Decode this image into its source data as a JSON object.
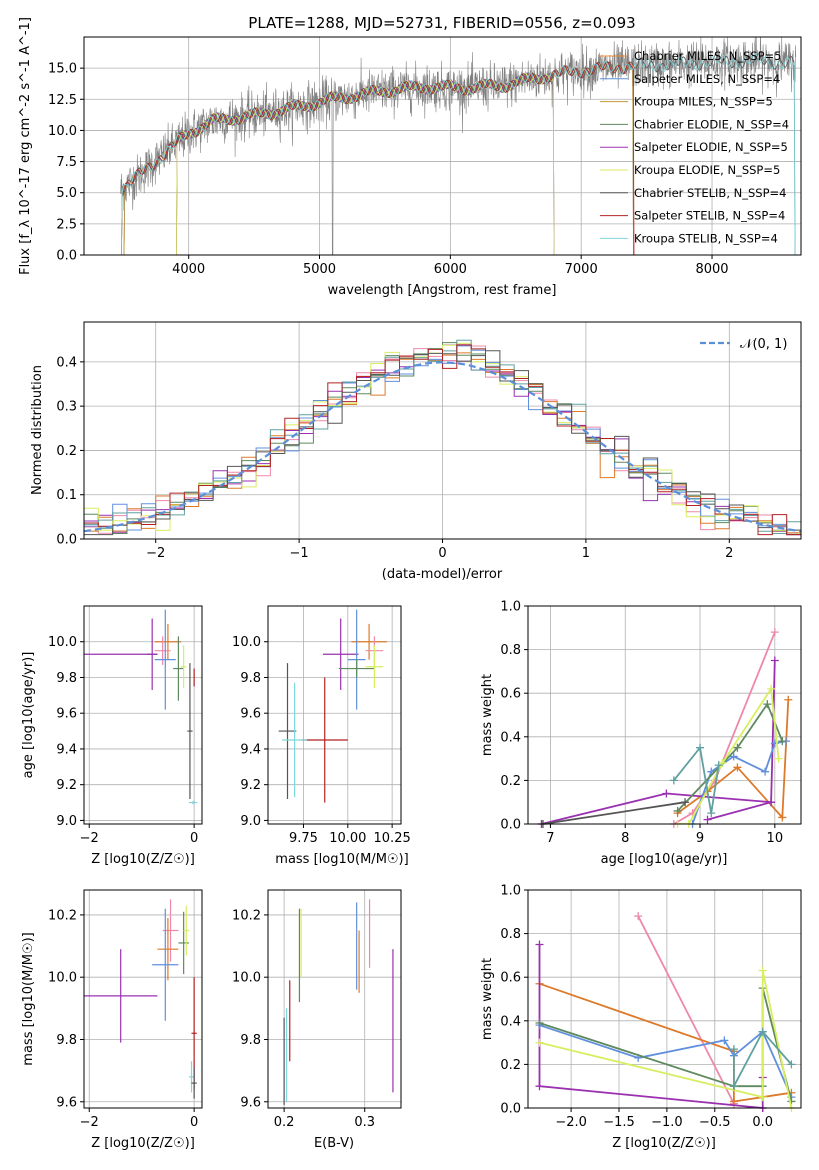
{
  "colors": {
    "Chabrier MILES": "#e8883a",
    "Salpeter MILES": "#5b8fd9",
    "Kroupa MILES": "#c49a3a",
    "Chabrier ELODIE": "#5e8a5e",
    "Salpeter ELODIE": "#a034b4",
    "Kroupa ELODIE": "#d8e860",
    "Chabrier STELIB": "#555555",
    "Salpeter STELIB": "#b22222",
    "Kroupa STELIB": "#7fd6dd",
    "data": "#808080",
    "gauss": "#5b8fd9",
    "pink": "#ee88aa",
    "orange": "#dd7a2a",
    "green": "#5e8a5e",
    "purple": "#9a30b0",
    "yellow": "#d8ee60",
    "blue": "#6090dd",
    "teal": "#60a0a0"
  },
  "chart_data": [
    {
      "type": "line",
      "title": "PLATE=1288, MJD=52731, FIBERID=0556, z=0.093",
      "xlabel": "wavelength [Angstrom, rest frame]",
      "ylabel": "Flux [f_λ 10^-17 erg cm^-2 s^-1 A^-1]",
      "xlim": [
        3200,
        8680
      ],
      "ylim": [
        0,
        17.5
      ],
      "xticks": [
        "4000",
        "5000",
        "6000",
        "7000",
        "8000"
      ],
      "xtick_values": [
        4000,
        5000,
        6000,
        7000,
        8000
      ],
      "yticks": [
        "0.0",
        "2.5",
        "5.0",
        "7.5",
        "10.0",
        "12.5",
        "15.0"
      ],
      "ytick_values": [
        0,
        2.5,
        5,
        7.5,
        10,
        12.5,
        15
      ],
      "legend": "upper right",
      "series": [
        {
          "name": "Chabrier MILES, N_SSP=5"
        },
        {
          "name": "Salpeter MILES, N_SSP=4"
        },
        {
          "name": "Kroupa MILES, N_SSP=5"
        },
        {
          "name": "Chabrier ELODIE, N_SSP=4"
        },
        {
          "name": "Salpeter ELODIE, N_SSP=5"
        },
        {
          "name": "Kroupa ELODIE, N_SSP=5"
        },
        {
          "name": "Chabrier STELIB, N_SSP=4"
        },
        {
          "name": "Salpeter STELIB, N_SSP=4"
        },
        {
          "name": "Kroupa STELIB, N_SSP=4"
        }
      ],
      "continuum": [
        [
          3480,
          5.2
        ],
        [
          3600,
          6.2
        ],
        [
          3800,
          8.0
        ],
        [
          4000,
          9.8
        ],
        [
          4200,
          10.8
        ],
        [
          4500,
          11.2
        ],
        [
          4800,
          11.8
        ],
        [
          5100,
          12.5
        ],
        [
          5500,
          13.2
        ],
        [
          5800,
          13.5
        ],
        [
          6100,
          13.4
        ],
        [
          6400,
          13.6
        ],
        [
          6700,
          14.3
        ],
        [
          7000,
          14.8
        ],
        [
          7400,
          15.2
        ],
        [
          7700,
          15.3
        ],
        [
          8000,
          15.5
        ],
        [
          8300,
          15.6
        ],
        [
          8640,
          15.4
        ]
      ]
    },
    {
      "type": "bar",
      "xlabel": "(data-model)/error",
      "ylabel": "Normed distribution",
      "xlim": [
        -2.5,
        2.5
      ],
      "ylim": [
        0,
        0.49
      ],
      "xticks": [
        "−2",
        "−1",
        "0",
        "1",
        "2"
      ],
      "xtick_values": [
        -2,
        -1,
        0,
        1,
        2
      ],
      "yticks": [
        "0.0",
        "0.1",
        "0.2",
        "0.3",
        "0.4"
      ],
      "ytick_values": [
        0,
        0.1,
        0.2,
        0.3,
        0.4
      ],
      "legend": "upper right",
      "gauss_label": "𝒩(0, 1)",
      "bin_width": 0.1
    },
    {
      "type": "scatter",
      "xlabel": "Z [log10(Z/Z☉)]",
      "ylabel": "age  [log10(age/yr)]",
      "xlim": [
        -2.1,
        0.15
      ],
      "ylim": [
        8.98,
        10.2
      ],
      "xticks": [
        "−2",
        "0"
      ],
      "xtick_values": [
        -2,
        0
      ],
      "yticks": [
        "9.0",
        "9.2",
        "9.4",
        "9.6",
        "9.8",
        "10.0"
      ],
      "ytick_values": [
        9.0,
        9.2,
        9.4,
        9.6,
        9.8,
        10.0
      ],
      "points": [
        {
          "c": "orange",
          "x": -0.5,
          "xe": 0.25,
          "y": 10.0,
          "ye": 0.1
        },
        {
          "c": "pink",
          "x": -0.6,
          "xe": 0.15,
          "y": 9.95,
          "ye": 0.08
        },
        {
          "c": "purple",
          "x": -0.8,
          "xe": 0.1,
          "y": 9.93,
          "ye": 0.2
        },
        {
          "c": "purple",
          "x": -1.4,
          "xe": 0.7,
          "y": 9.93,
          "ye": 0.0
        },
        {
          "c": "blue",
          "x": -0.55,
          "xe": 0.2,
          "y": 9.9,
          "ye": 0.28
        },
        {
          "c": "green",
          "x": -0.3,
          "xe": 0.1,
          "y": 9.85,
          "ye": 0.18
        },
        {
          "c": "yellow",
          "x": -0.2,
          "xe": 0.05,
          "y": 9.86,
          "ye": 0.12
        },
        {
          "c": "Chabrier STELIB",
          "x": -0.08,
          "xe": 0.05,
          "y": 9.5,
          "ye": 0.38
        },
        {
          "c": "Salpeter STELIB",
          "x": 0.0,
          "xe": 0.01,
          "y": 9.8,
          "ye": 0.05
        },
        {
          "c": "Kroupa STELIB",
          "x": -0.02,
          "xe": 0.08,
          "y": 9.1,
          "ye": 0.01
        }
      ]
    },
    {
      "type": "scatter",
      "xlabel": "mass [log10(M/M☉)]",
      "ylabel": "",
      "xlim": [
        9.55,
        10.3
      ],
      "ylim": [
        8.98,
        10.2
      ],
      "xticks": [
        "9.75",
        "10.00",
        "10.25"
      ],
      "xtick_values": [
        9.75,
        10.0,
        10.25
      ],
      "yticks": [
        "9.0",
        "9.2",
        "9.4",
        "9.6",
        "9.8",
        "10.0"
      ],
      "ytick_values": [
        9.0,
        9.2,
        9.4,
        9.6,
        9.8,
        10.0
      ],
      "points": [
        {
          "c": "orange",
          "x": 10.12,
          "xe": 0.1,
          "y": 10.0,
          "ye": 0.1
        },
        {
          "c": "pink",
          "x": 10.15,
          "xe": 0.05,
          "y": 9.95,
          "ye": 0.08
        },
        {
          "c": "purple",
          "x": 9.96,
          "xe": 0.1,
          "y": 9.93,
          "ye": 0.2
        },
        {
          "c": "blue",
          "x": 10.05,
          "xe": 0.05,
          "y": 9.9,
          "ye": 0.28
        },
        {
          "c": "green",
          "x": 10.05,
          "xe": 0.1,
          "y": 9.85,
          "ye": 0.05
        },
        {
          "c": "yellow",
          "x": 10.15,
          "xe": 0.05,
          "y": 9.86,
          "ye": 0.12
        },
        {
          "c": "Chabrier STELIB",
          "x": 9.66,
          "xe": 0.05,
          "y": 9.5,
          "ye": 0.38
        },
        {
          "c": "Salpeter STELIB",
          "x": 9.87,
          "xe": 0.13,
          "y": 9.45,
          "ye": 0.35
        },
        {
          "c": "Kroupa STELIB",
          "x": 9.7,
          "xe": 0.07,
          "y": 9.45,
          "ye": 0.32
        }
      ]
    },
    {
      "type": "line",
      "xlabel": "age  [log10(age/yr)]",
      "ylabel": "mass weight",
      "xlim": [
        6.7,
        10.35
      ],
      "ylim": [
        0,
        1.0
      ],
      "xticks": [
        "7",
        "8",
        "9",
        "10"
      ],
      "xtick_values": [
        7,
        8,
        9,
        10
      ],
      "yticks": [
        "0.0",
        "0.2",
        "0.4",
        "0.6",
        "0.8",
        "1.0"
      ],
      "ytick_values": [
        0,
        0.2,
        0.4,
        0.6,
        0.8,
        1.0
      ],
      "series": [
        {
          "c": "pink",
          "pts": [
            [
              8.65,
              0.0
            ],
            [
              8.9,
              0.05
            ],
            [
              9.2,
              0.2
            ],
            [
              10.0,
              0.88
            ]
          ]
        },
        {
          "c": "orange",
          "pts": [
            [
              8.7,
              0.05
            ],
            [
              9.1,
              0.15
            ],
            [
              9.5,
              0.26
            ],
            [
              10.1,
              0.03
            ],
            [
              10.18,
              0.57
            ]
          ]
        },
        {
          "c": "purple",
          "pts": [
            [
              6.88,
              0.0
            ],
            [
              8.55,
              0.14
            ],
            [
              9.95,
              0.1
            ],
            [
              10.0,
              0.75
            ],
            [
              9.95,
              0.1
            ],
            [
              9.1,
              0.02
            ]
          ]
        },
        {
          "c": "blue",
          "pts": [
            [
              8.9,
              0.0
            ],
            [
              9.15,
              0.24
            ],
            [
              9.45,
              0.31
            ],
            [
              9.87,
              0.24
            ],
            [
              10.0,
              0.37
            ],
            [
              10.15,
              0.38
            ]
          ]
        },
        {
          "c": "green",
          "pts": [
            [
              8.7,
              0.06
            ],
            [
              9.5,
              0.35
            ],
            [
              9.9,
              0.55
            ],
            [
              10.1,
              0.38
            ]
          ]
        },
        {
          "c": "yellow",
          "pts": [
            [
              8.7,
              0.0
            ],
            [
              8.85,
              0.0
            ],
            [
              9.3,
              0.28
            ],
            [
              9.95,
              0.62
            ],
            [
              10.05,
              0.3
            ]
          ]
        },
        {
          "c": "teal",
          "pts": [
            [
              8.65,
              0.2
            ],
            [
              9.0,
              0.35
            ],
            [
              9.15,
              0.05
            ],
            [
              9.25,
              0.27
            ]
          ]
        },
        {
          "c": "Chabrier STELIB",
          "pts": [
            [
              6.9,
              0.0
            ],
            [
              8.8,
              0.1
            ]
          ]
        }
      ]
    },
    {
      "type": "scatter",
      "xlabel": "Z [log10(Z/Z☉)]",
      "ylabel": "mass [log10(M/M☉)]",
      "xlim": [
        -2.1,
        0.15
      ],
      "ylim": [
        9.58,
        10.28
      ],
      "xticks": [
        "−2",
        "0"
      ],
      "xtick_values": [
        -2,
        0
      ],
      "yticks": [
        "9.6",
        "9.8",
        "10.0",
        "10.2"
      ],
      "ytick_values": [
        9.6,
        9.8,
        10.0,
        10.2
      ],
      "points": [
        {
          "c": "pink",
          "x": -0.45,
          "xe": 0.15,
          "y": 10.15,
          "ye": 0.1
        },
        {
          "c": "orange",
          "x": -0.5,
          "xe": 0.2,
          "y": 10.09,
          "ye": 0.1
        },
        {
          "c": "blue",
          "x": -0.55,
          "xe": 0.25,
          "y": 10.04,
          "ye": 0.18
        },
        {
          "c": "purple",
          "x": -1.4,
          "xe": 0.7,
          "y": 9.94,
          "ye": 0.15
        },
        {
          "c": "green",
          "x": -0.2,
          "xe": 0.1,
          "y": 10.11,
          "ye": 0.1
        },
        {
          "c": "yellow",
          "x": -0.15,
          "xe": 0.05,
          "y": 10.15,
          "ye": 0.08
        },
        {
          "c": "Salpeter STELIB",
          "x": 0.0,
          "xe": 0.05,
          "y": 9.82,
          "ye": 0.18
        },
        {
          "c": "Kroupa STELIB",
          "x": -0.05,
          "xe": 0.05,
          "y": 9.68,
          "ye": 0.05
        },
        {
          "c": "Chabrier STELIB",
          "x": 0.0,
          "xe": 0.05,
          "y": 9.66,
          "ye": 0.05
        }
      ]
    },
    {
      "type": "scatter",
      "xlabel": "E(B-V)",
      "ylabel": "",
      "xlim": [
        0.18,
        0.345
      ],
      "ylim": [
        9.58,
        10.28
      ],
      "xticks": [
        "0.2",
        "0.3"
      ],
      "xtick_values": [
        0.2,
        0.3
      ],
      "yticks": [
        "9.6",
        "9.8",
        "10.0",
        "10.2"
      ],
      "ytick_values": [
        9.6,
        9.8,
        10.0,
        10.2
      ],
      "points": [
        {
          "c": "Chabrier STELIB",
          "x": 0.2,
          "xe": 0,
          "y": 9.73,
          "ye": 0.14
        },
        {
          "c": "Kroupa STELIB",
          "x": 0.203,
          "xe": 0,
          "y": 9.75,
          "ye": 0.15
        },
        {
          "c": "Salpeter STELIB",
          "x": 0.207,
          "xe": 0,
          "y": 9.86,
          "ye": 0.13
        },
        {
          "c": "green",
          "x": 0.219,
          "xe": 0,
          "y": 10.07,
          "ye": 0.15
        },
        {
          "c": "yellow",
          "x": 0.221,
          "xe": 0,
          "y": 10.11,
          "ye": 0.11
        },
        {
          "c": "blue",
          "x": 0.29,
          "xe": 0,
          "y": 10.1,
          "ye": 0.14
        },
        {
          "c": "orange",
          "x": 0.293,
          "xe": 0,
          "y": 10.05,
          "ye": 0.1
        },
        {
          "c": "pink",
          "x": 0.306,
          "xe": 0,
          "y": 10.14,
          "ye": 0.11
        },
        {
          "c": "purple",
          "x": 0.335,
          "xe": 0,
          "y": 9.86,
          "ye": 0.23
        }
      ]
    },
    {
      "type": "line",
      "xlabel": "Z [log10(Z/Z☉)]",
      "ylabel": "mass weight",
      "xlim": [
        -2.45,
        0.4
      ],
      "ylim": [
        0,
        1.0
      ],
      "xticks": [
        "−2.0",
        "−1.5",
        "−1.0",
        "−0.5",
        "0.0"
      ],
      "xtick_values": [
        -2.0,
        -1.5,
        -1.0,
        -0.5,
        0.0
      ],
      "yticks": [
        "0.0",
        "0.2",
        "0.4",
        "0.6",
        "0.8",
        "1.0"
      ],
      "ytick_values": [
        0,
        0.2,
        0.4,
        0.6,
        0.8,
        1.0
      ],
      "series": [
        {
          "c": "pink",
          "pts": [
            [
              -1.3,
              0.88
            ],
            [
              -0.3,
              0.02
            ]
          ]
        },
        {
          "c": "orange",
          "pts": [
            [
              -2.33,
              0.57
            ],
            [
              -0.3,
              0.26
            ],
            [
              -0.3,
              0.03
            ],
            [
              0.3,
              0.07
            ]
          ]
        },
        {
          "c": "purple",
          "pts": [
            [
              -2.33,
              0.75
            ],
            [
              -2.33,
              0.1
            ],
            [
              0.0,
              0.0
            ],
            [
              0.0,
              0.14
            ],
            [
              0.0,
              0.0
            ]
          ]
        },
        {
          "c": "blue",
          "pts": [
            [
              -2.33,
              0.38
            ],
            [
              -1.3,
              0.23
            ],
            [
              -0.4,
              0.31
            ],
            [
              -0.3,
              0.24
            ],
            [
              0.0,
              0.35
            ],
            [
              0.3,
              0.05
            ]
          ]
        },
        {
          "c": "green",
          "pts": [
            [
              -2.33,
              0.39
            ],
            [
              -0.3,
              0.1
            ],
            [
              0.0,
              0.1
            ],
            [
              0.0,
              0.55
            ],
            [
              0.3,
              0.03
            ]
          ]
        },
        {
          "c": "yellow",
          "pts": [
            [
              -2.33,
              0.3
            ],
            [
              0.0,
              0.05
            ],
            [
              0.0,
              0.63
            ],
            [
              0.3,
              0.0
            ]
          ]
        },
        {
          "c": "teal",
          "pts": [
            [
              -0.3,
              0.27
            ],
            [
              -0.3,
              0.1
            ],
            [
              0.0,
              0.35
            ],
            [
              0.3,
              0.2
            ]
          ]
        }
      ]
    }
  ]
}
